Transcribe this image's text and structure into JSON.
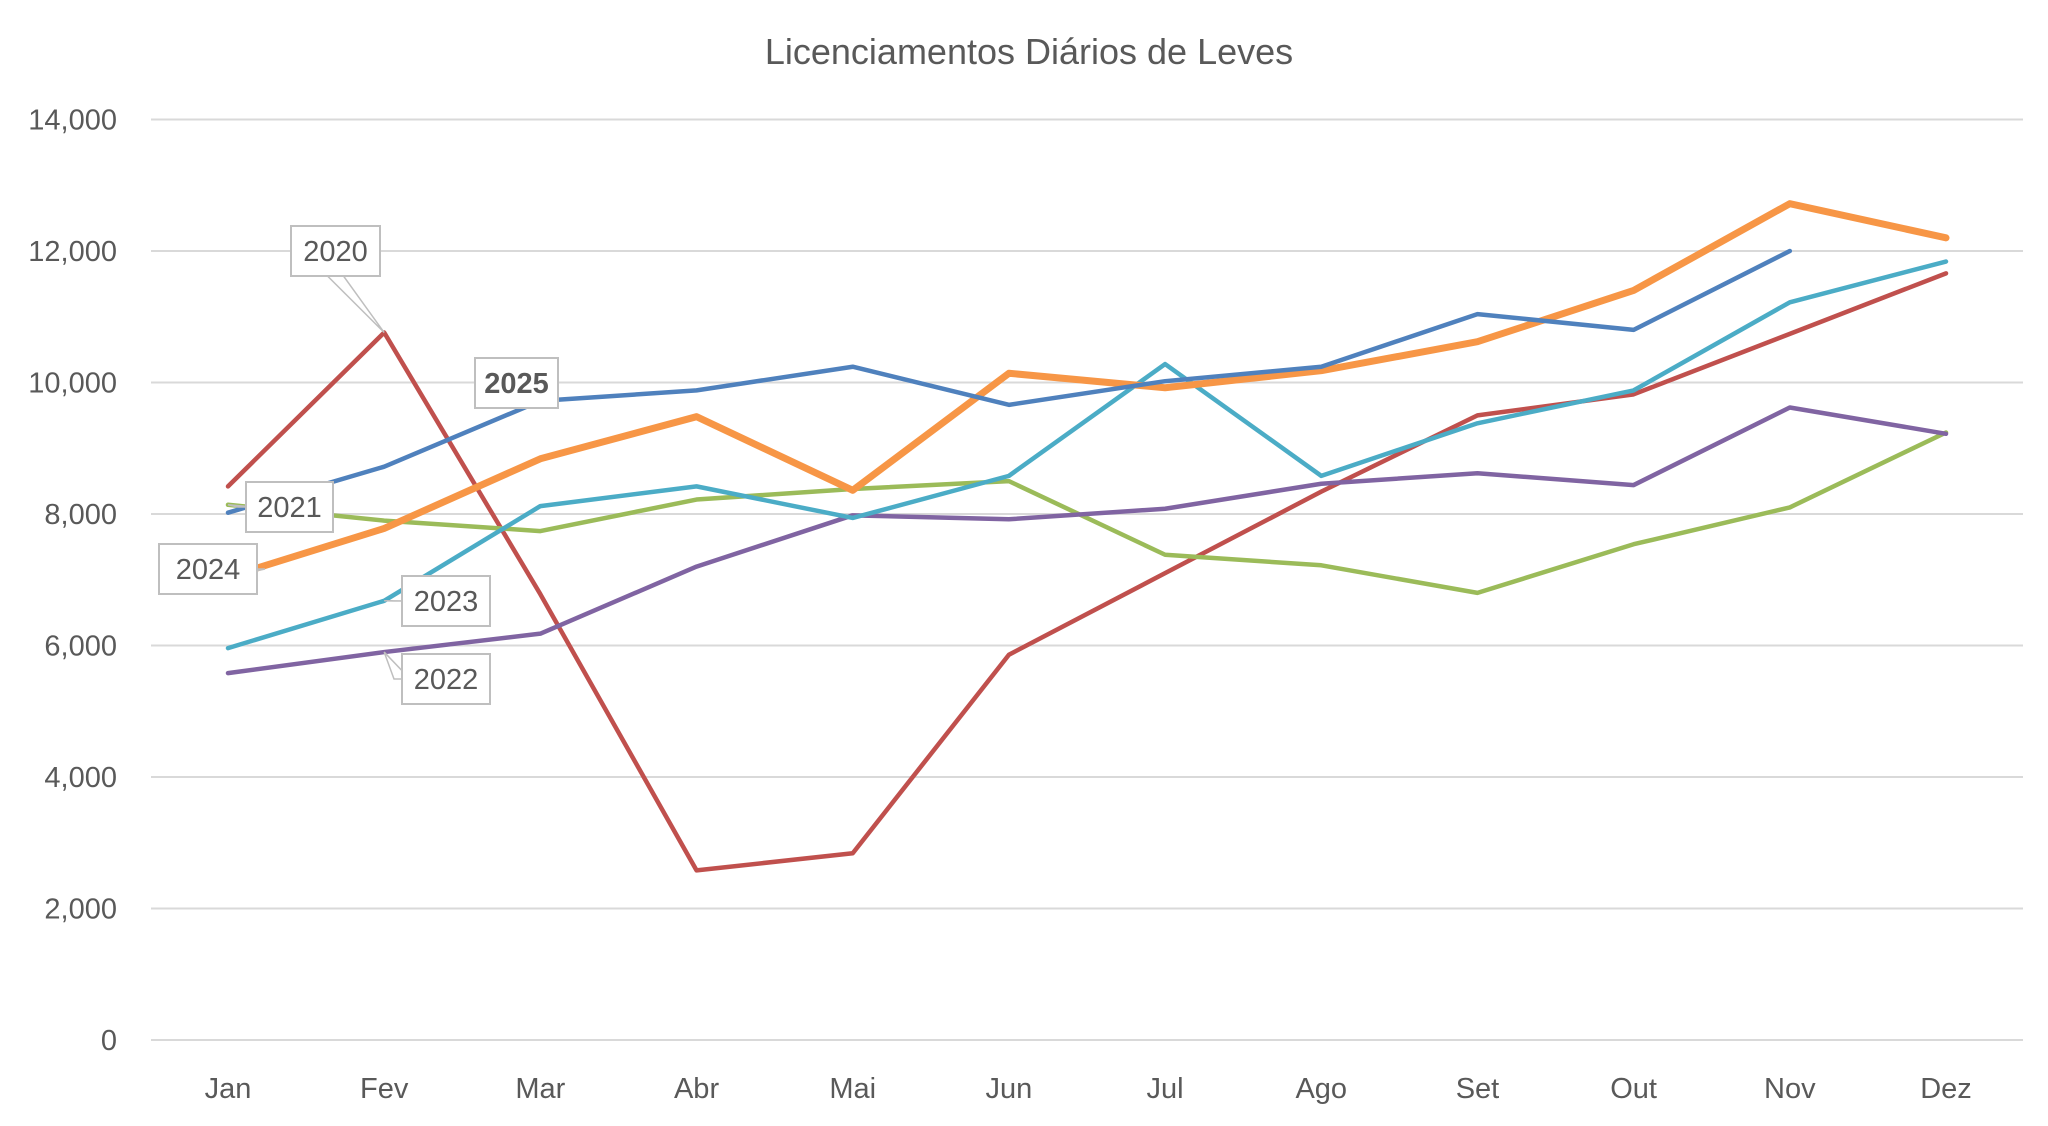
{
  "chart_data": {
    "type": "line",
    "title": "Licenciamentos Diários de Leves",
    "xlabel": "",
    "ylabel": "",
    "categories": [
      "Jan",
      "Fev",
      "Mar",
      "Abr",
      "Mai",
      "Jun",
      "Jul",
      "Ago",
      "Set",
      "Out",
      "Nov",
      "Dez"
    ],
    "ylim": [
      0,
      14000
    ],
    "yticks": [
      "0",
      "2,000",
      "4,000",
      "6,000",
      "8,000",
      "10,000",
      "12,000",
      "14,000"
    ],
    "ytick_values": [
      0,
      2000,
      4000,
      6000,
      8000,
      10000,
      12000,
      14000
    ],
    "grid": true,
    "legend": "none (inline data labels)",
    "series": [
      {
        "name": "2020",
        "color": "#C0504D",
        "bold": false,
        "values": [
          8420,
          10760,
          6780,
          2580,
          2840,
          5860,
          7100,
          8340,
          9500,
          9820,
          10740,
          11660
        ]
      },
      {
        "name": "2021",
        "color": "#9BBB59",
        "bold": false,
        "values": [
          8140,
          7900,
          7740,
          8220,
          8380,
          8500,
          7380,
          7220,
          6800,
          7540,
          8100,
          9240
        ]
      },
      {
        "name": "2022",
        "color": "#8064A2",
        "bold": false,
        "values": [
          5580,
          5900,
          6180,
          7200,
          7980,
          7920,
          8080,
          8460,
          8620,
          8440,
          9620,
          9220
        ]
      },
      {
        "name": "2023",
        "color": "#4BACC6",
        "bold": false,
        "values": [
          5960,
          6680,
          8120,
          8420,
          7940,
          8580,
          10280,
          8580,
          9380,
          9880,
          11220,
          11840
        ]
      },
      {
        "name": "2024",
        "color": "#F79646",
        "bold": false,
        "values": [
          7040,
          7780,
          8840,
          9480,
          8360,
          10140,
          9920,
          10180,
          10620,
          11400,
          12720,
          12200
        ]
      },
      {
        "name": "2025",
        "color": "#4F81BD",
        "bold": true,
        "values": [
          8020,
          8720,
          9720,
          9880,
          10240,
          9660,
          10020,
          10240,
          11040,
          10800,
          12000,
          null
        ]
      }
    ]
  }
}
